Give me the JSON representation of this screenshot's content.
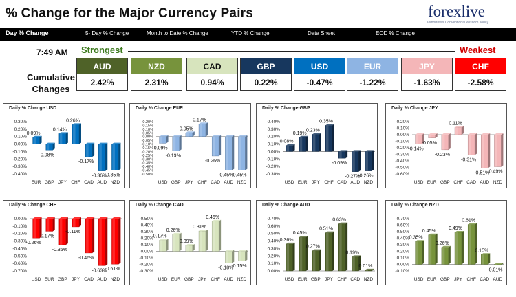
{
  "header": {
    "title": "% Change for the Major Currency Pairs",
    "logo": "forexlive",
    "logo_tagline": "Tomorrow's Conventional Wisdom Today"
  },
  "nav": [
    {
      "label": "Day % Change",
      "active": true
    },
    {
      "label": "5- Day % Change",
      "active": false
    },
    {
      "label": "Month to Date % Change",
      "active": false
    },
    {
      "label": "YTD % Change",
      "active": false
    },
    {
      "label": "Data Sheet",
      "active": false
    },
    {
      "label": "EOD % Change",
      "active": false
    }
  ],
  "summary": {
    "time": "7:49 AM",
    "strongest_label": "Strongest",
    "weakest_label": "Weakest",
    "cumulative_label_1": "Cumulative",
    "cumulative_label_2": "Changes",
    "currencies": [
      {
        "code": "AUD",
        "value": "2.42%",
        "color": "#4f6228"
      },
      {
        "code": "NZD",
        "value": "2.31%",
        "color": "#77933c"
      },
      {
        "code": "CAD",
        "value": "0.94%",
        "color": "#d7e4bd"
      },
      {
        "code": "GBP",
        "value": "0.22%",
        "color": "#17375e"
      },
      {
        "code": "USD",
        "value": "-0.47%",
        "color": "#0070c0"
      },
      {
        "code": "EUR",
        "value": "-1.22%",
        "color": "#8eb4e3"
      },
      {
        "code": "JPY",
        "value": "-1.63%",
        "color": "#f4b6b8"
      },
      {
        "code": "CHF",
        "value": "-2.58%",
        "color": "#ff0000"
      }
    ]
  },
  "chart_data": [
    {
      "type": "bar",
      "title": "Daily % Change USD",
      "color": "#0070c0",
      "categories": [
        "EUR",
        "GBP",
        "JPY",
        "CHF",
        "CAD",
        "AUD",
        "NZD"
      ],
      "values": [
        0.09,
        -0.08,
        0.14,
        0.26,
        -0.17,
        -0.36,
        -0.35
      ],
      "labels": [
        "0.09%",
        "-0.08%",
        "0.14%",
        "0.26%",
        "-0.17%",
        "-0.36%",
        "-0.35%"
      ],
      "ylim": [
        -0.4,
        0.3
      ],
      "yticks": [
        "0.30%",
        "0.20%",
        "0.10%",
        "0.00%",
        "-0.10%",
        "-0.20%",
        "-0.30%",
        "-0.40%"
      ]
    },
    {
      "type": "bar",
      "title": "Daily % Change EUR",
      "color": "#8eb4e3",
      "categories": [
        "USD",
        "GBP",
        "JPY",
        "CHF",
        "CAD",
        "AUD",
        "NZD"
      ],
      "values": [
        -0.09,
        -0.19,
        0.05,
        0.17,
        -0.26,
        -0.45,
        -0.45
      ],
      "labels": [
        "-0.09%",
        "-0.19%",
        "0.05%",
        "0.17%",
        "-0.26%",
        "-0.45%",
        "-0.45%"
      ],
      "ylim": [
        -0.5,
        0.2
      ],
      "yticks": [
        "0.20%",
        "0.15%",
        "0.10%",
        "0.05%",
        "0.00%",
        "-0.05%",
        "-0.10%",
        "-0.15%",
        "-0.20%",
        "-0.25%",
        "-0.30%",
        "-0.35%",
        "-0.40%",
        "-0.45%",
        "-0.50%"
      ]
    },
    {
      "type": "bar",
      "title": "Daily % Change GBP",
      "color": "#17375e",
      "categories": [
        "USD",
        "EUR",
        "JPY",
        "CHF",
        "CAD",
        "AUD",
        "NZD"
      ],
      "values": [
        0.08,
        0.19,
        0.23,
        0.35,
        -0.09,
        -0.27,
        -0.26
      ],
      "labels": [
        "0.08%",
        "0.19%",
        "0.23%",
        "0.35%",
        "-0.09%",
        "-0.27%",
        "-0.26%"
      ],
      "ylim": [
        -0.3,
        0.4
      ],
      "yticks": [
        "0.40%",
        "0.30%",
        "0.20%",
        "0.10%",
        "0.00%",
        "-0.10%",
        "-0.20%",
        "-0.30%"
      ]
    },
    {
      "type": "bar",
      "title": "Daily % Change JPY",
      "color": "#f4b6b8",
      "categories": [
        "USD",
        "EUR",
        "GBP",
        "CHF",
        "CAD",
        "AUD",
        "NZD"
      ],
      "values": [
        -0.14,
        -0.05,
        -0.23,
        0.11,
        -0.31,
        -0.51,
        -0.49
      ],
      "labels": [
        "-0.14%",
        "-0.05%",
        "-0.23%",
        "0.11%",
        "-0.31%",
        "-0.51%",
        "-0.49%"
      ],
      "ylim": [
        -0.6,
        0.2
      ],
      "yticks": [
        "0.20%",
        "0.10%",
        "0.00%",
        "-0.10%",
        "-0.20%",
        "-0.30%",
        "-0.40%",
        "-0.50%",
        "-0.60%"
      ]
    },
    {
      "type": "bar",
      "title": "Daily % Change CHF",
      "color": "#ff0000",
      "categories": [
        "USD",
        "EUR",
        "GBP",
        "JPY",
        "CAD",
        "AUD",
        "NZD"
      ],
      "values": [
        -0.26,
        -0.17,
        -0.35,
        -0.11,
        -0.46,
        -0.63,
        -0.61
      ],
      "labels": [
        "-0.26%",
        "-0.17%",
        "-0.35%",
        "-0.11%",
        "-0.46%",
        "-0.63%",
        "-0.61%"
      ],
      "ylim": [
        -0.7,
        0.0
      ],
      "yticks": [
        "0.00%",
        "-0.10%",
        "-0.20%",
        "-0.30%",
        "-0.40%",
        "-0.50%",
        "-0.60%",
        "-0.70%"
      ]
    },
    {
      "type": "bar",
      "title": "Daily % Change CAD",
      "color": "#d7e4bd",
      "categories": [
        "USD",
        "EUR",
        "GBP",
        "JPY",
        "CHF",
        "AUD",
        "NZD"
      ],
      "values": [
        0.17,
        0.26,
        0.09,
        0.31,
        0.46,
        -0.18,
        -0.15
      ],
      "labels": [
        "0.17%",
        "0.26%",
        "0.09%",
        "0.31%",
        "0.46%",
        "-0.18%",
        "-0.15%"
      ],
      "ylim": [
        -0.3,
        0.5
      ],
      "yticks": [
        "0.50%",
        "0.40%",
        "0.30%",
        "0.20%",
        "0.10%",
        "0.00%",
        "-0.10%",
        "-0.20%",
        "-0.30%"
      ]
    },
    {
      "type": "bar",
      "title": "Daily % Change AUD",
      "color": "#4f6228",
      "categories": [
        "USD",
        "EUR",
        "GBP",
        "JPY",
        "CHF",
        "CAD",
        "NZD"
      ],
      "values": [
        0.36,
        0.45,
        0.27,
        0.51,
        0.63,
        0.19,
        0.01
      ],
      "labels": [
        "0.36%",
        "0.45%",
        "0.27%",
        "0.51%",
        "0.63%",
        "0.19%",
        "0.01%"
      ],
      "ylim": [
        0.0,
        0.7
      ],
      "yticks": [
        "0.70%",
        "0.60%",
        "0.50%",
        "0.40%",
        "0.30%",
        "0.20%",
        "0.10%",
        "0.00%"
      ]
    },
    {
      "type": "bar",
      "title": "Daily % Change NZD",
      "color": "#77933c",
      "categories": [
        "USD",
        "EUR",
        "GBP",
        "JPY",
        "CHF",
        "CAD",
        "AUD"
      ],
      "values": [
        0.35,
        0.45,
        0.26,
        0.49,
        0.61,
        0.15,
        -0.01
      ],
      "labels": [
        "0.35%",
        "0.45%",
        "0.26%",
        "0.49%",
        "0.61%",
        "0.15%",
        "-0.01%"
      ],
      "ylim": [
        -0.1,
        0.7
      ],
      "yticks": [
        "0.70%",
        "0.60%",
        "0.50%",
        "0.40%",
        "0.30%",
        "0.20%",
        "0.10%",
        "0.00%",
        "-0.10%"
      ]
    }
  ]
}
